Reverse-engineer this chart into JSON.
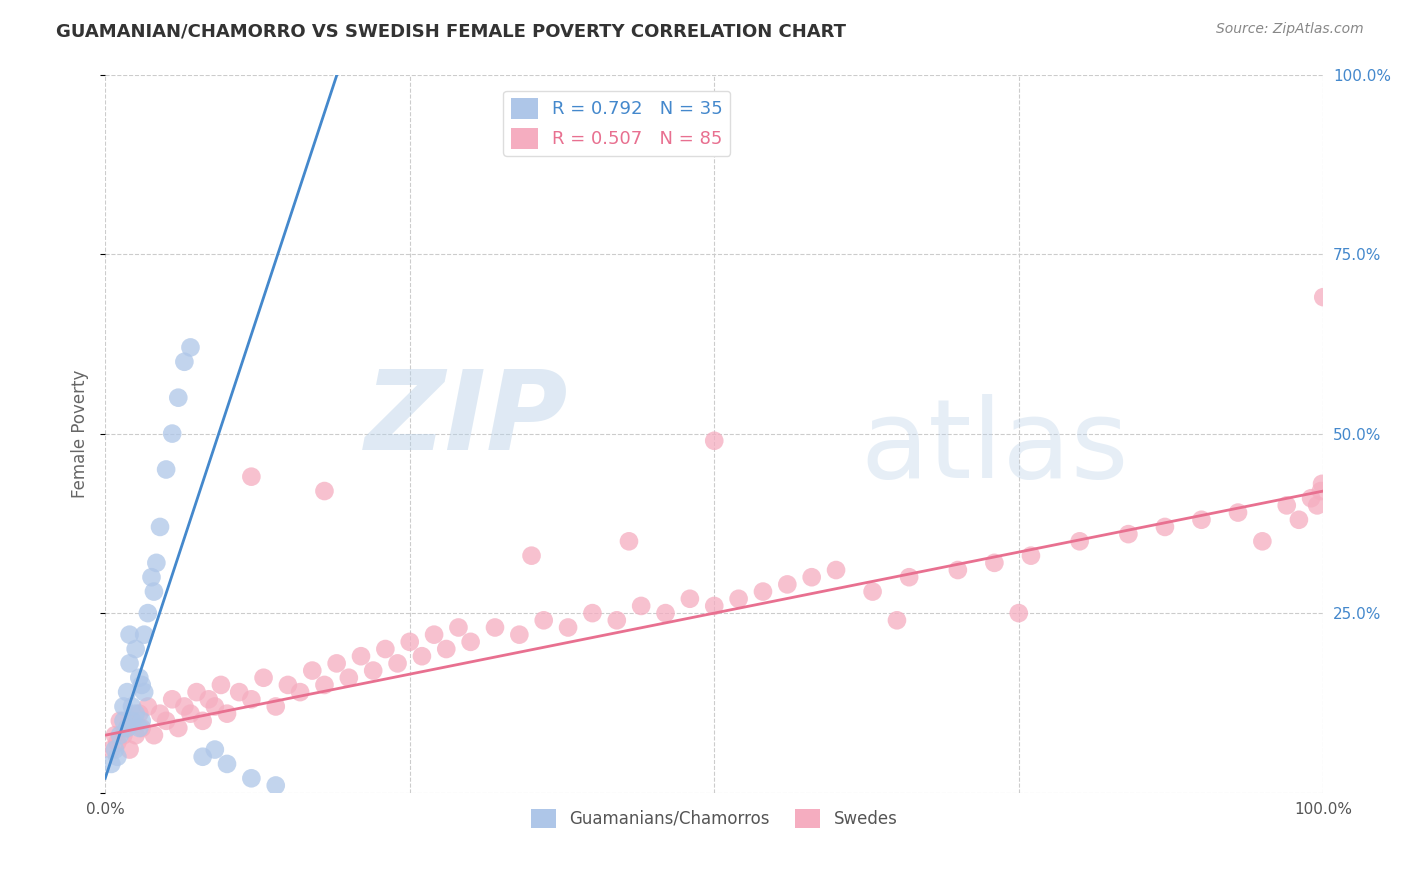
{
  "title": "GUAMANIAN/CHAMORRO VS SWEDISH FEMALE POVERTY CORRELATION CHART",
  "source": "Source: ZipAtlas.com",
  "ylabel": "Female Poverty",
  "xlim": [
    0,
    1
  ],
  "ylim": [
    0,
    1
  ],
  "ytick_positions": [
    0.0,
    0.25,
    0.5,
    0.75,
    1.0
  ],
  "ytick_labels": [
    "",
    "25.0%",
    "50.0%",
    "75.0%",
    "100.0%"
  ],
  "xtick_positions": [
    0.0,
    1.0
  ],
  "xtick_labels": [
    "0.0%",
    "100.0%"
  ],
  "blue_R": 0.792,
  "blue_N": 35,
  "pink_R": 0.507,
  "pink_N": 85,
  "blue_color": "#aec6e8",
  "pink_color": "#f5adc0",
  "blue_line_color": "#4488cc",
  "pink_line_color": "#e87090",
  "blue_label": "Guamanians/Chamorros",
  "pink_label": "Swedes",
  "watermark_zip": "ZIP",
  "watermark_atlas": "atlas",
  "background_color": "#ffffff",
  "grid_color": "#cccccc",
  "blue_scatter_x": [
    0.005,
    0.008,
    0.01,
    0.012,
    0.015,
    0.015,
    0.018,
    0.018,
    0.02,
    0.02,
    0.022,
    0.022,
    0.025,
    0.025,
    0.028,
    0.028,
    0.03,
    0.03,
    0.032,
    0.032,
    0.035,
    0.038,
    0.04,
    0.042,
    0.045,
    0.05,
    0.055,
    0.06,
    0.065,
    0.07,
    0.08,
    0.09,
    0.1,
    0.12,
    0.14
  ],
  "blue_scatter_y": [
    0.04,
    0.06,
    0.05,
    0.08,
    0.1,
    0.12,
    0.09,
    0.14,
    0.18,
    0.22,
    0.1,
    0.12,
    0.11,
    0.2,
    0.09,
    0.16,
    0.1,
    0.15,
    0.14,
    0.22,
    0.25,
    0.3,
    0.28,
    0.32,
    0.37,
    0.45,
    0.5,
    0.55,
    0.6,
    0.62,
    0.05,
    0.06,
    0.04,
    0.02,
    0.01
  ],
  "pink_scatter_x": [
    0.005,
    0.008,
    0.01,
    0.012,
    0.015,
    0.018,
    0.02,
    0.022,
    0.025,
    0.028,
    0.03,
    0.035,
    0.04,
    0.045,
    0.05,
    0.055,
    0.06,
    0.065,
    0.07,
    0.075,
    0.08,
    0.085,
    0.09,
    0.095,
    0.1,
    0.11,
    0.12,
    0.13,
    0.14,
    0.15,
    0.16,
    0.17,
    0.18,
    0.19,
    0.2,
    0.21,
    0.22,
    0.23,
    0.24,
    0.25,
    0.26,
    0.27,
    0.28,
    0.29,
    0.3,
    0.32,
    0.34,
    0.36,
    0.38,
    0.4,
    0.42,
    0.44,
    0.46,
    0.48,
    0.5,
    0.52,
    0.54,
    0.56,
    0.58,
    0.6,
    0.63,
    0.66,
    0.7,
    0.73,
    0.76,
    0.8,
    0.84,
    0.87,
    0.9,
    0.93,
    0.95,
    0.97,
    0.98,
    0.99,
    0.995,
    0.998,
    0.999,
    1.0,
    0.5,
    0.12,
    0.18,
    0.35,
    0.43,
    0.65,
    0.75
  ],
  "pink_scatter_y": [
    0.06,
    0.08,
    0.07,
    0.1,
    0.08,
    0.09,
    0.06,
    0.1,
    0.08,
    0.11,
    0.09,
    0.12,
    0.08,
    0.11,
    0.1,
    0.13,
    0.09,
    0.12,
    0.11,
    0.14,
    0.1,
    0.13,
    0.12,
    0.15,
    0.11,
    0.14,
    0.13,
    0.16,
    0.12,
    0.15,
    0.14,
    0.17,
    0.15,
    0.18,
    0.16,
    0.19,
    0.17,
    0.2,
    0.18,
    0.21,
    0.19,
    0.22,
    0.2,
    0.23,
    0.21,
    0.23,
    0.22,
    0.24,
    0.23,
    0.25,
    0.24,
    0.26,
    0.25,
    0.27,
    0.26,
    0.27,
    0.28,
    0.29,
    0.3,
    0.31,
    0.28,
    0.3,
    0.31,
    0.32,
    0.33,
    0.35,
    0.36,
    0.37,
    0.38,
    0.39,
    0.35,
    0.4,
    0.38,
    0.41,
    0.4,
    0.42,
    0.43,
    0.69,
    0.49,
    0.44,
    0.42,
    0.33,
    0.35,
    0.24,
    0.25
  ],
  "blue_line_x": [
    0.0,
    0.2
  ],
  "blue_line_y": [
    0.02,
    1.05
  ],
  "pink_line_x": [
    0.0,
    1.0
  ],
  "pink_line_y": [
    0.08,
    0.42
  ]
}
